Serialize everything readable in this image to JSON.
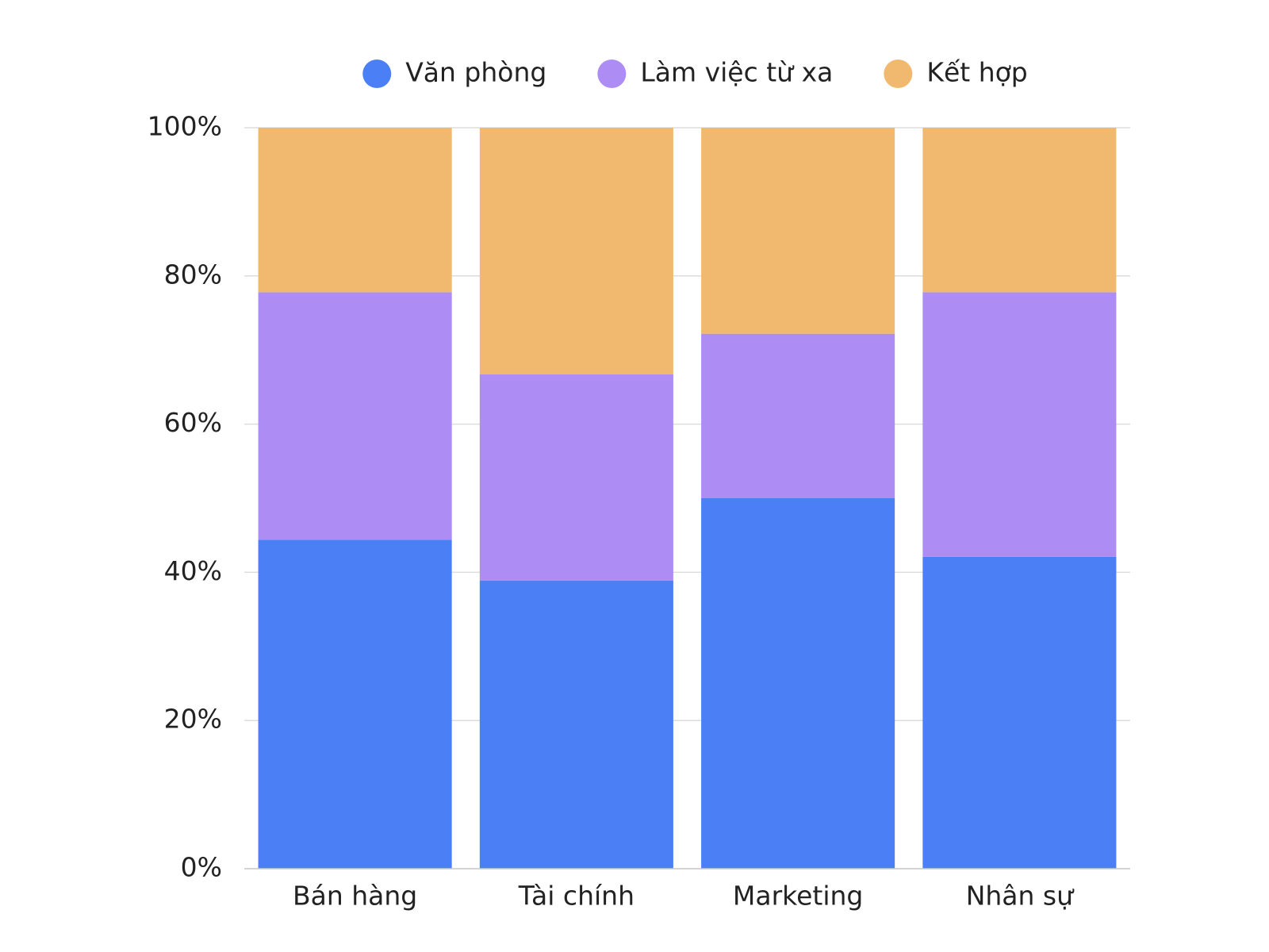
{
  "chart_data": {
    "type": "stacked_bar",
    "categories": [
      "Bán hàng",
      "Tài chính",
      "Marketing",
      "Nhân sự"
    ],
    "series": [
      {
        "name": "Văn phòng",
        "color": "#4b7ff5",
        "values": [
          44.4,
          38.9,
          50,
          42.1
        ]
      },
      {
        "name": "Làm việc từ xa",
        "color": "#ad8cf4",
        "values": [
          33.4,
          27.8,
          22.2,
          35.7
        ]
      },
      {
        "name": "Kết hợp",
        "color": "#f1b970",
        "values": [
          22.2,
          33.3,
          27.8,
          22.2
        ]
      }
    ],
    "ylim": [
      0,
      100
    ],
    "yticks": [
      {
        "value": 0,
        "label": "0%"
      },
      {
        "value": 20,
        "label": "20%"
      },
      {
        "value": 40,
        "label": "40%"
      },
      {
        "value": 60,
        "label": "60%"
      },
      {
        "value": 80,
        "label": "80%"
      },
      {
        "value": 100,
        "label": "100%"
      }
    ],
    "grid": true,
    "legend": "top"
  }
}
